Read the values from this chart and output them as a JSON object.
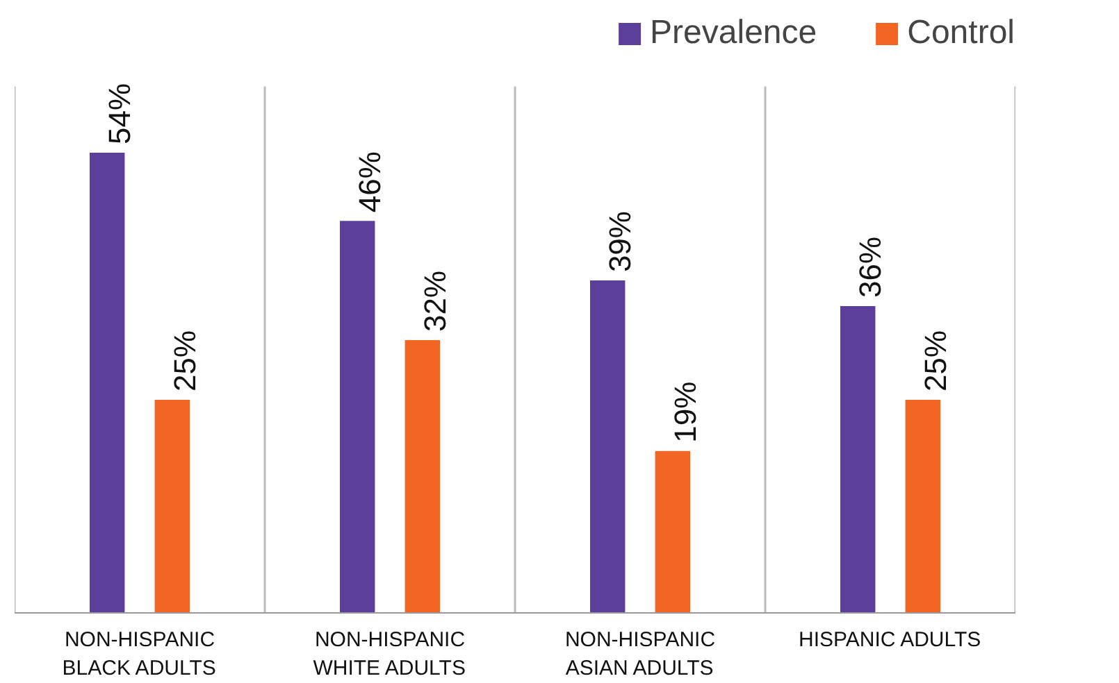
{
  "chart_data": {
    "type": "bar",
    "categories": [
      "NON-HISPANIC BLACK ADULTS",
      "NON-HISPANIC WHITE ADULTS",
      "NON-HISPANIC ASIAN ADULTS",
      "HISPANIC ADULTS"
    ],
    "series": [
      {
        "name": "Prevalence",
        "color": "#5b3f9a",
        "values": [
          54,
          46,
          39,
          36
        ],
        "value_labels": [
          "54%",
          "46%",
          "39%",
          "36%"
        ]
      },
      {
        "name": "Control",
        "color": "#f26522",
        "values": [
          25,
          32,
          19,
          25
        ],
        "value_labels": [
          "25%",
          "32%",
          "19%",
          "25%"
        ]
      }
    ],
    "legend": "top right"
  }
}
